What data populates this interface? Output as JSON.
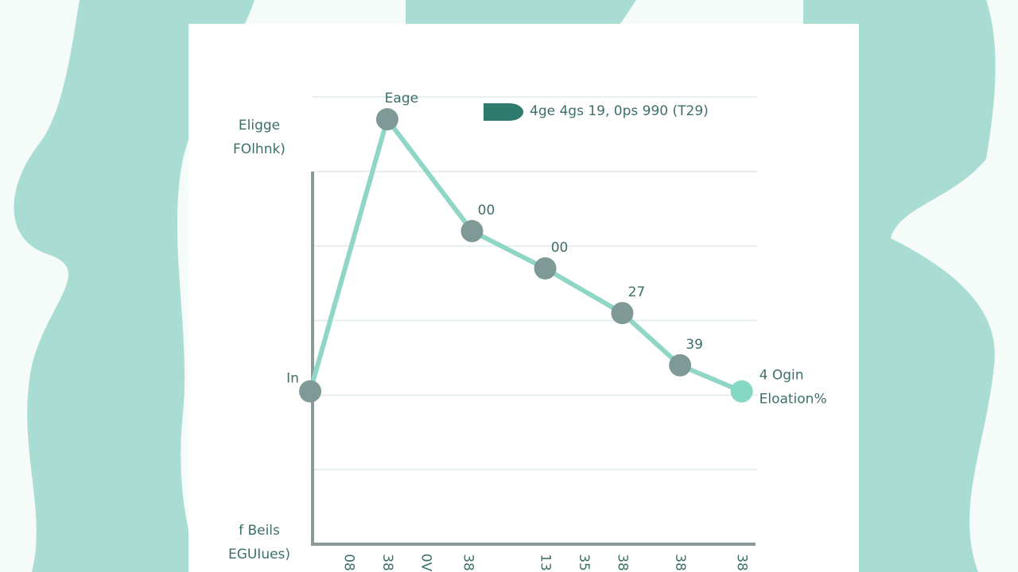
{
  "chart_data": {
    "type": "line",
    "ylabel": [
      "Eligge",
      "FOlhnk)"
    ],
    "xlabel": [
      "f Beils",
      "EGUIues)"
    ],
    "x": [
      0,
      2,
      4.2,
      6.1,
      8.1,
      9.6,
      11.2
    ],
    "series": [
      {
        "name": "4ge 4gs 19, 0ps 990 (T29)",
        "color": "#8fd6c6",
        "values": [
          2.05,
          5.7,
          4.2,
          3.7,
          3.1,
          2.4,
          2.05
        ]
      }
    ],
    "point_labels": [
      "In",
      "Eage",
      "00",
      "00",
      "27",
      "39",
      [
        "4 Ogin",
        "Eloation%"
      ]
    ],
    "marker_color": "#7f9996",
    "last_marker_color": "#84d8c4",
    "xlim": [
      0,
      11.6
    ],
    "xticks": [
      {
        "value": 1,
        "label": "08"
      },
      {
        "value": 2,
        "label": "38"
      },
      {
        "value": 3,
        "label": "0V"
      },
      {
        "value": 4.1,
        "label": "38"
      },
      {
        "value": 6.1,
        "label": "13"
      },
      {
        "value": 7.1,
        "label": "35"
      },
      {
        "value": 8.1,
        "label": "38"
      },
      {
        "value": 9.6,
        "label": "38"
      },
      {
        "value": 11.2,
        "label": "38"
      }
    ],
    "ylim": [
      0,
      6
    ],
    "yticks": [
      1,
      2,
      3,
      4,
      5,
      6
    ],
    "show_ytick_labels": false,
    "grid": true,
    "legend": "top-right",
    "legend_color": "#2f7b6d"
  }
}
